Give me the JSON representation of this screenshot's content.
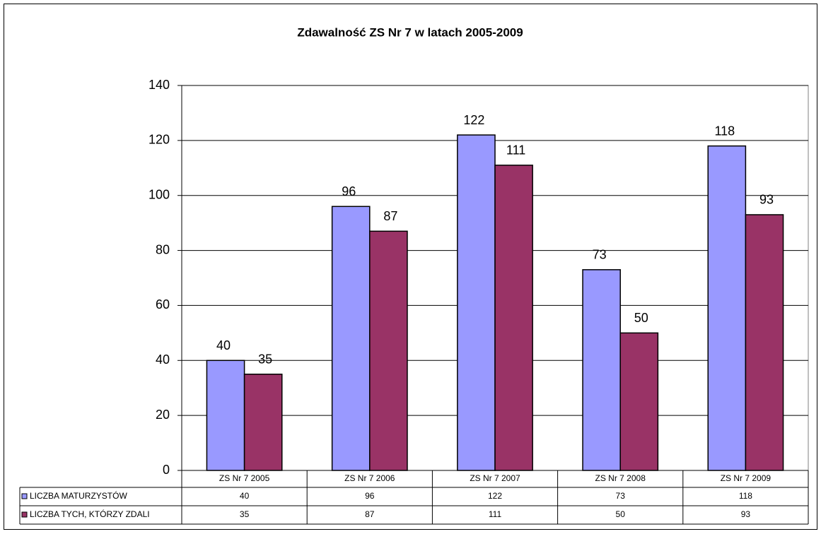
{
  "chart_data": {
    "type": "bar",
    "title": "Zdawalność ZS Nr 7  w latach 2005-2009",
    "categories": [
      "ZS Nr 7 2005",
      "ZS Nr 7 2006",
      "ZS Nr 7 2007",
      "ZS Nr 7 2008",
      "ZS Nr 7 2009"
    ],
    "series": [
      {
        "name": "LICZBA MATURZYSTÓW",
        "color": "#9999ff",
        "values": [
          40,
          96,
          122,
          73,
          118
        ]
      },
      {
        "name": "LICZBA TYCH, KTÓRZY ZDALI",
        "color": "#993366",
        "values": [
          35,
          87,
          111,
          50,
          93
        ]
      }
    ],
    "ylim": [
      0,
      140
    ],
    "yticks": [
      0,
      20,
      40,
      60,
      80,
      100,
      120,
      140
    ],
    "grid": true
  }
}
